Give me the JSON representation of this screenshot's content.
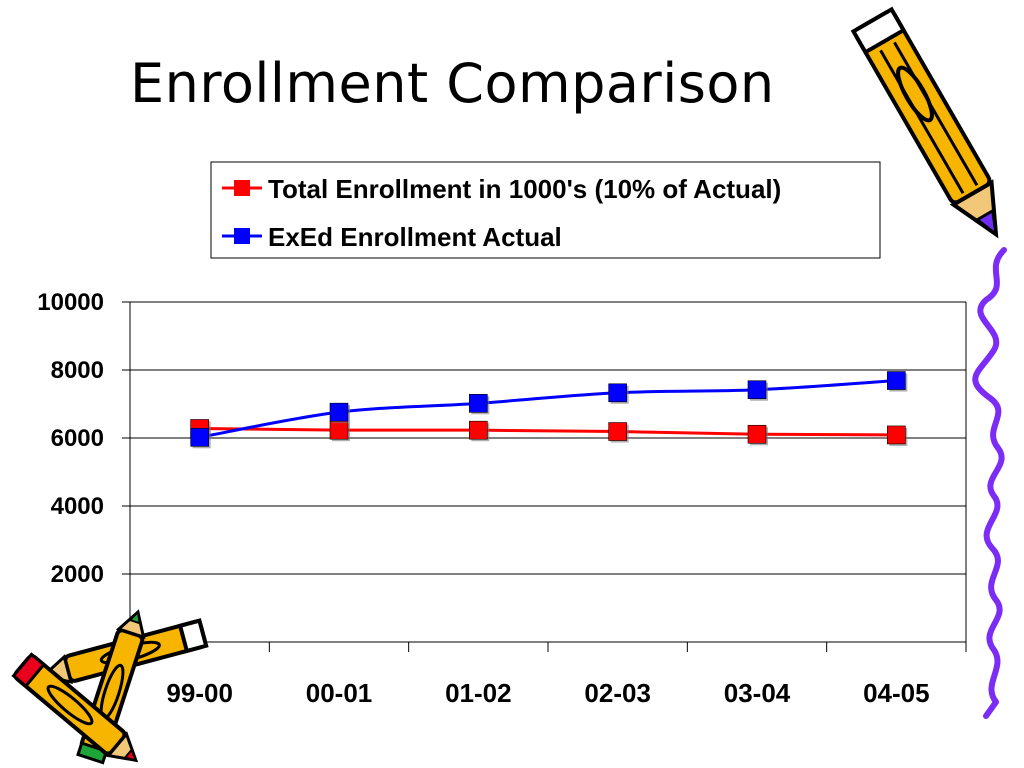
{
  "slide": {
    "title": "Enrollment Comparison"
  },
  "colors": {
    "total_series": "#ff0000",
    "exed_series": "#0000ff",
    "squiggle": "#7b2cf5",
    "pencil_yellow": "#f7b500",
    "pencil_tip_purple": "#6f2cf2",
    "pencil_tip_red": "#e8001c",
    "pencil_tip_green": "#1fa43a"
  },
  "decorations": {
    "top_right": "pencil-icon",
    "right_edge": "squiggle-line",
    "bottom_left": "crossed-pencils-icon"
  },
  "chart_data": {
    "type": "line",
    "title": "",
    "xlabel": "",
    "ylabel": "",
    "categories": [
      "99-00",
      "00-01",
      "01-02",
      "02-03",
      "03-04",
      "04-05"
    ],
    "ylim": [
      0,
      10000
    ],
    "yticks": [
      "10000",
      "8000",
      "6000",
      "4000",
      "2000"
    ],
    "grid": true,
    "legend_position": "top-right",
    "series": [
      {
        "name": "Total Enrollment in 1000's (10% of Actual)",
        "color": "#ff0000",
        "marker": "square",
        "values": [
          6280,
          6230,
          6230,
          6190,
          6110,
          6090
        ]
      },
      {
        "name": "ExEd Enrollment Actual",
        "color": "#0000ff",
        "marker": "square",
        "smooth": true,
        "values": [
          6020,
          6760,
          7020,
          7330,
          7420,
          7690
        ]
      }
    ]
  }
}
